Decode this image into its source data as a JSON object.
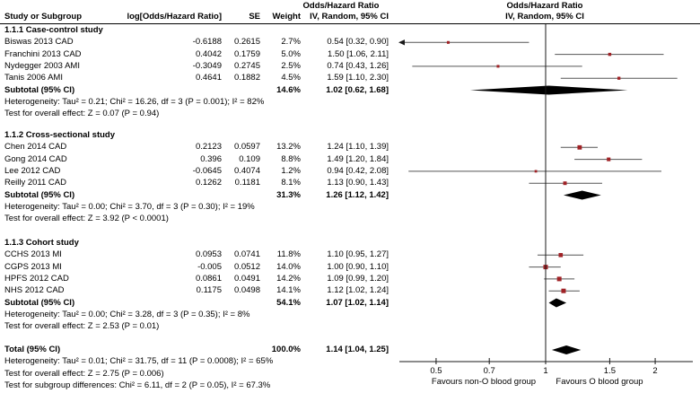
{
  "header": {
    "study_col": "Study or Subgroup",
    "logor_col": "log[Odds/Hazard Ratio]",
    "se_col": "SE",
    "weight_col": "Weight",
    "ci_col": "IV, Random, 95% CI",
    "text_effect_title": "Odds/Hazard Ratio",
    "plot_effect_title": "Odds/Hazard Ratio",
    "plot_ci_subtitle": "IV, Random, 95% CI"
  },
  "colors": {
    "marker": "#a02226",
    "ci_line": "#555555",
    "diamond": "#000000",
    "axis": "#1a1a1a",
    "background": "#ffffff"
  },
  "chart_data": {
    "type": "forest",
    "x_scale": "log",
    "x_ticks": [
      0.5,
      0.7,
      1,
      1.5,
      2
    ],
    "null_line": 1,
    "favours_left": "Favours non-O blood group",
    "favours_right": "Favours O blood group",
    "groups": [
      {
        "label": "1.1.1 Case-control study",
        "studies": [
          {
            "label": "Biswas 2013 CAD",
            "log_or": "-0.6188",
            "se": "0.2615",
            "weight": "2.7%",
            "ci_text": "0.54 [0.32, 0.90]",
            "est": 0.54,
            "lo": 0.32,
            "hi": 0.9
          },
          {
            "label": "Franchini 2013 CAD",
            "log_or": "0.4042",
            "se": "0.1759",
            "weight": "5.0%",
            "ci_text": "1.50 [1.06, 2.11]",
            "est": 1.5,
            "lo": 1.06,
            "hi": 2.11
          },
          {
            "label": "Nydegger 2003 AMI",
            "log_or": "-0.3049",
            "se": "0.2745",
            "weight": "2.5%",
            "ci_text": "0.74 [0.43, 1.26]",
            "est": 0.74,
            "lo": 0.43,
            "hi": 1.26
          },
          {
            "label": "Tanis 2006 AMI",
            "log_or": "0.4641",
            "se": "0.1882",
            "weight": "4.5%",
            "ci_text": "1.59 [1.10, 2.30]",
            "est": 1.59,
            "lo": 1.1,
            "hi": 2.3
          }
        ],
        "subtotal": {
          "label": "Subtotal (95% CI)",
          "weight": "14.6%",
          "ci_text": "1.02 [0.62, 1.68]",
          "est": 1.02,
          "lo": 0.62,
          "hi": 1.68
        },
        "heterogeneity": "Heterogeneity: Tau² = 0.21; Chi² = 16.26, df = 3 (P = 0.001); I² = 82%",
        "overall_test": "Test for overall effect: Z = 0.07 (P = 0.94)"
      },
      {
        "label": "1.1.2 Cross-sectional study",
        "studies": [
          {
            "label": "Chen 2014 CAD",
            "log_or": "0.2123",
            "se": "0.0597",
            "weight": "13.2%",
            "ci_text": "1.24 [1.10, 1.39]",
            "est": 1.24,
            "lo": 1.1,
            "hi": 1.39
          },
          {
            "label": "Gong 2014 CAD",
            "log_or": "0.396",
            "se": "0.109",
            "weight": "8.8%",
            "ci_text": "1.49 [1.20, 1.84]",
            "est": 1.49,
            "lo": 1.2,
            "hi": 1.84
          },
          {
            "label": "Lee 2012 CAD",
            "log_or": "-0.0645",
            "se": "0.4074",
            "weight": "1.2%",
            "ci_text": "0.94 [0.42, 2.08]",
            "est": 0.94,
            "lo": 0.42,
            "hi": 2.08
          },
          {
            "label": "Reilly 2011 CAD",
            "log_or": "0.1262",
            "se": "0.1181",
            "weight": "8.1%",
            "ci_text": "1.13 [0.90, 1.43]",
            "est": 1.13,
            "lo": 0.9,
            "hi": 1.43
          }
        ],
        "subtotal": {
          "label": "Subtotal (95% CI)",
          "weight": "31.3%",
          "ci_text": "1.26 [1.12, 1.42]",
          "est": 1.26,
          "lo": 1.12,
          "hi": 1.42
        },
        "heterogeneity": "Heterogeneity: Tau² = 0.00; Chi² = 3.70, df = 3 (P = 0.30); I² = 19%",
        "overall_test": "Test for overall effect: Z = 3.92 (P < 0.0001)"
      },
      {
        "label": "1.1.3 Cohort study",
        "studies": [
          {
            "label": "CCHS 2013 MI",
            "log_or": "0.0953",
            "se": "0.0741",
            "weight": "11.8%",
            "ci_text": "1.10 [0.95, 1.27]",
            "est": 1.1,
            "lo": 0.95,
            "hi": 1.27
          },
          {
            "label": "CGPS 2013 MI",
            "log_or": "-0.005",
            "se": "0.0512",
            "weight": "14.0%",
            "ci_text": "1.00 [0.90, 1.10]",
            "est": 1.0,
            "lo": 0.9,
            "hi": 1.1
          },
          {
            "label": "HPFS 2012 CAD",
            "log_or": "0.0861",
            "se": "0.0491",
            "weight": "14.2%",
            "ci_text": "1.09 [0.99, 1.20]",
            "est": 1.09,
            "lo": 0.99,
            "hi": 1.2
          },
          {
            "label": "NHS 2012 CAD",
            "log_or": "0.1175",
            "se": "0.0498",
            "weight": "14.1%",
            "ci_text": "1.12 [1.02, 1.24]",
            "est": 1.12,
            "lo": 1.02,
            "hi": 1.24
          }
        ],
        "subtotal": {
          "label": "Subtotal (95% CI)",
          "weight": "54.1%",
          "ci_text": "1.07 [1.02, 1.14]",
          "est": 1.07,
          "lo": 1.02,
          "hi": 1.14
        },
        "heterogeneity": "Heterogeneity: Tau² = 0.00; Chi² = 3.28, df = 3 (P = 0.35); I² = 8%",
        "overall_test": "Test for overall effect: Z = 2.53 (P = 0.01)"
      }
    ],
    "total": {
      "label": "Total (95% CI)",
      "weight": "100.0%",
      "ci_text": "1.14 [1.04, 1.25]",
      "est": 1.14,
      "lo": 1.04,
      "hi": 1.25
    },
    "total_heterogeneity": "Heterogeneity: Tau² = 0.01; Chi² = 31.75, df = 11 (P = 0.0008); I² = 65%",
    "total_overall_test": "Test for overall effect: Z = 2.75 (P = 0.006)",
    "subgroup_test": "Test for subgroup differences: Chi² = 6.11, df = 2 (P = 0.05), I² = 67.3%"
  }
}
